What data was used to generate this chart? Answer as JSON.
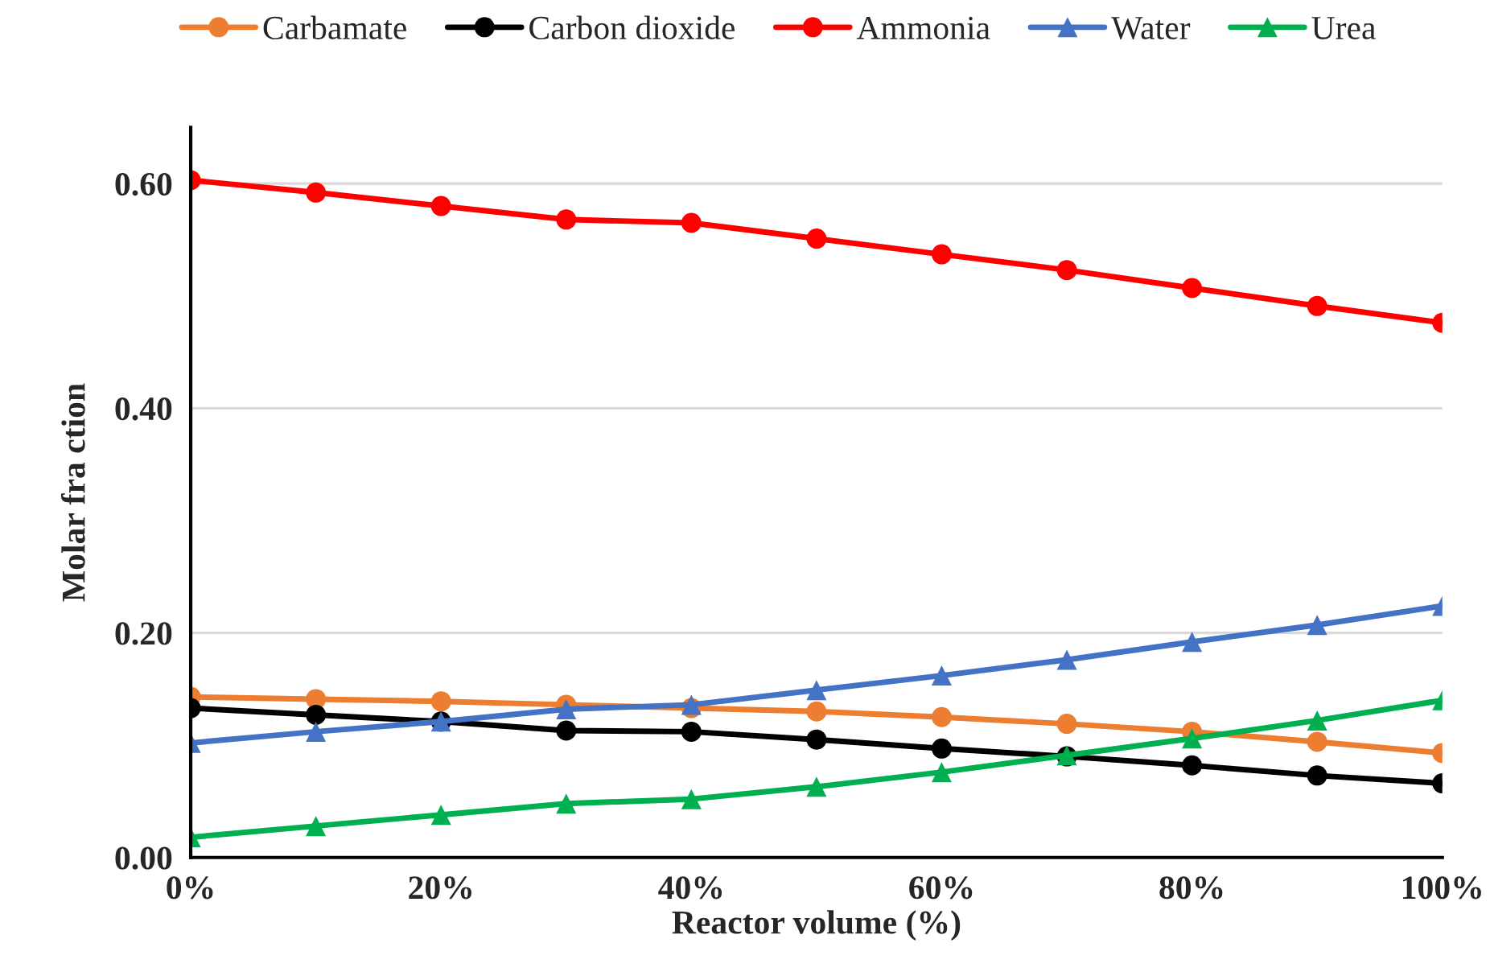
{
  "chart_data": {
    "type": "line",
    "xlabel": "Reactor volume (%)",
    "ylabel": "Molar fra ction",
    "x": [
      0,
      10,
      20,
      30,
      40,
      50,
      60,
      70,
      80,
      90,
      100
    ],
    "xlim": [
      0,
      100
    ],
    "xticks": [
      {
        "value": 0,
        "label": "0%"
      },
      {
        "value": 20,
        "label": "20%"
      },
      {
        "value": 40,
        "label": "40%"
      },
      {
        "value": 60,
        "label": "60%"
      },
      {
        "value": 80,
        "label": "80%"
      },
      {
        "value": 100,
        "label": "100%"
      }
    ],
    "ylim": [
      0,
      0.65
    ],
    "yticks": [
      {
        "value": 0,
        "label": "0.00"
      },
      {
        "value": 0.2,
        "label": "0.20"
      },
      {
        "value": 0.4,
        "label": "0.40"
      },
      {
        "value": 0.6,
        "label": "0.60"
      }
    ],
    "grid": "y",
    "legend": "top",
    "series": [
      {
        "name": "Carbamate",
        "color": "#ed7d31",
        "marker": "circle",
        "values": [
          0.143,
          0.141,
          0.139,
          0.136,
          0.133,
          0.13,
          0.125,
          0.119,
          0.112,
          0.103,
          0.093
        ]
      },
      {
        "name": "Carbon dioxide",
        "color": "#000000",
        "marker": "circle",
        "values": [
          0.133,
          0.127,
          0.121,
          0.113,
          0.112,
          0.105,
          0.097,
          0.09,
          0.082,
          0.073,
          0.066
        ]
      },
      {
        "name": "Ammonia",
        "color": "#ff0000",
        "marker": "circle",
        "values": [
          0.603,
          0.592,
          0.58,
          0.568,
          0.565,
          0.551,
          0.537,
          0.523,
          0.507,
          0.491,
          0.476
        ]
      },
      {
        "name": "Water",
        "color": "#4472c4",
        "marker": "triangle",
        "values": [
          0.102,
          0.112,
          0.121,
          0.132,
          0.136,
          0.149,
          0.162,
          0.176,
          0.192,
          0.207,
          0.224
        ]
      },
      {
        "name": "Urea",
        "color": "#00b050",
        "marker": "triangle",
        "values": [
          0.018,
          0.028,
          0.038,
          0.048,
          0.052,
          0.063,
          0.076,
          0.091,
          0.106,
          0.122,
          0.14
        ]
      }
    ]
  }
}
